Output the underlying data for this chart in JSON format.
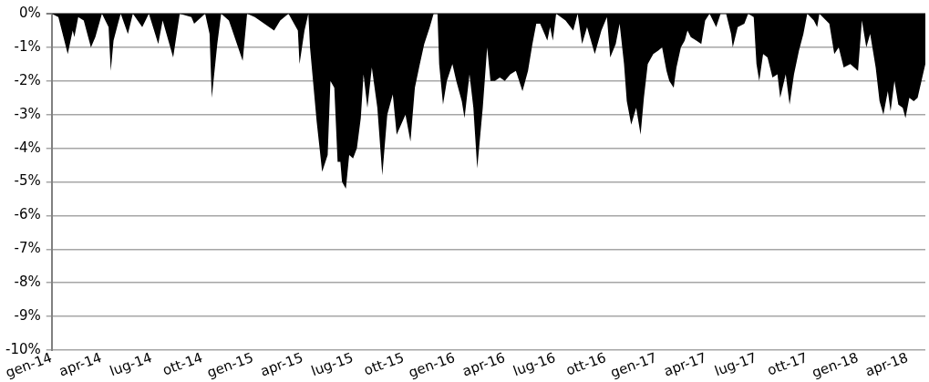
{
  "chart_data": {
    "type": "area",
    "color": "#000000",
    "grid": "y",
    "marker": "none",
    "xlim": [
      "2014-01-01",
      "2018-05-03"
    ],
    "xticks": [
      {
        "value": "2014-01",
        "label": "gen-14"
      },
      {
        "value": "2014-04",
        "label": "apr-14"
      },
      {
        "value": "2014-07",
        "label": "lug-14"
      },
      {
        "value": "2014-10",
        "label": "ott-14"
      },
      {
        "value": "2015-01",
        "label": "gen-15"
      },
      {
        "value": "2015-04",
        "label": "apr-15"
      },
      {
        "value": "2015-07",
        "label": "lug-15"
      },
      {
        "value": "2015-10",
        "label": "ott-15"
      },
      {
        "value": "2016-01",
        "label": "gen-16"
      },
      {
        "value": "2016-04",
        "label": "apr-16"
      },
      {
        "value": "2016-07",
        "label": "lug-16"
      },
      {
        "value": "2016-10",
        "label": "ott-16"
      },
      {
        "value": "2017-01",
        "label": "gen-17"
      },
      {
        "value": "2017-04",
        "label": "apr-17"
      },
      {
        "value": "2017-07",
        "label": "lug-17"
      },
      {
        "value": "2017-10",
        "label": "ott-17"
      },
      {
        "value": "2018-01",
        "label": "gen-18"
      },
      {
        "value": "2018-04",
        "label": "apr-18"
      }
    ],
    "ylim": [
      -10,
      0
    ],
    "yticks": [
      {
        "value": 0,
        "label": "0%"
      },
      {
        "value": -1,
        "label": "-1%"
      },
      {
        "value": -2,
        "label": "-2%"
      },
      {
        "value": -3,
        "label": "-3%"
      },
      {
        "value": -4,
        "label": "-4%"
      },
      {
        "value": -5,
        "label": "-5%"
      },
      {
        "value": -6,
        "label": "-6%"
      },
      {
        "value": -7,
        "label": "-7%"
      },
      {
        "value": -8,
        "label": "-8%"
      },
      {
        "value": -9,
        "label": "-9%"
      },
      {
        "value": -10,
        "label": "-10%"
      }
    ],
    "x": [
      "2014-01-01",
      "2014-01-13",
      "2014-01-30",
      "2014-02-08",
      "2014-02-11",
      "2014-02-18",
      "2014-02-28",
      "2014-03-13",
      "2014-03-21",
      "2014-04-02",
      "2014-04-14",
      "2014-04-18",
      "2014-04-23",
      "2014-05-01",
      "2014-05-06",
      "2014-05-19",
      "2014-05-28",
      "2014-06-14",
      "2014-06-26",
      "2014-07-13",
      "2014-07-21",
      "2014-08-09",
      "2014-08-21",
      "2014-09-11",
      "2014-09-16",
      "2014-10-06",
      "2014-10-14",
      "2014-10-18",
      "2014-10-28",
      "2014-11-04",
      "2014-11-18",
      "2014-12-13",
      "2014-12-21",
      "2015-01-04",
      "2015-02-08",
      "2015-02-19",
      "2015-03-06",
      "2015-03-23",
      "2015-03-26",
      "2015-04-04",
      "2015-04-11",
      "2015-04-14",
      "2015-04-26",
      "2015-05-06",
      "2015-05-16",
      "2015-05-21",
      "2015-05-28",
      "2015-06-03",
      "2015-06-08",
      "2015-06-11",
      "2015-06-18",
      "2015-06-24",
      "2015-07-01",
      "2015-07-08",
      "2015-07-15",
      "2015-07-20",
      "2015-07-27",
      "2015-08-04",
      "2015-08-14",
      "2015-08-23",
      "2015-09-01",
      "2015-09-11",
      "2015-09-18",
      "2015-09-26",
      "2015-10-04",
      "2015-10-13",
      "2015-10-21",
      "2015-10-30",
      "2015-11-07",
      "2015-11-17",
      "2015-11-24",
      "2015-12-01",
      "2015-12-04",
      "2015-12-11",
      "2015-12-18",
      "2015-12-28",
      "2016-01-04",
      "2016-01-14",
      "2016-01-19",
      "2016-01-28",
      "2016-02-04",
      "2016-02-11",
      "2016-02-21",
      "2016-02-29",
      "2016-03-06",
      "2016-03-14",
      "2016-03-23",
      "2016-04-01",
      "2016-04-11",
      "2016-04-21",
      "2016-05-03",
      "2016-05-13",
      "2016-05-21",
      "2016-05-28",
      "2016-06-04",
      "2016-06-12",
      "2016-06-17",
      "2016-06-22",
      "2016-06-27",
      "2016-07-03",
      "2016-07-20",
      "2016-08-03",
      "2016-08-11",
      "2016-08-19",
      "2016-08-28",
      "2016-09-11",
      "2016-09-23",
      "2016-10-03",
      "2016-10-09",
      "2016-10-19",
      "2016-10-26",
      "2016-11-03",
      "2016-11-08",
      "2016-11-16",
      "2016-11-25",
      "2016-12-03",
      "2016-12-09",
      "2016-12-16",
      "2016-12-26",
      "2017-01-04",
      "2017-01-11",
      "2017-01-19",
      "2017-01-24",
      "2017-02-01",
      "2017-02-06",
      "2017-02-14",
      "2017-02-21",
      "2017-02-26",
      "2017-03-04",
      "2017-03-14",
      "2017-03-23",
      "2017-03-30",
      "2017-04-07",
      "2017-04-19",
      "2017-04-27",
      "2017-05-07",
      "2017-05-16",
      "2017-05-19",
      "2017-05-28",
      "2017-06-09",
      "2017-06-16",
      "2017-06-26",
      "2017-07-01",
      "2017-07-06",
      "2017-07-13",
      "2017-07-21",
      "2017-07-30",
      "2017-08-08",
      "2017-08-13",
      "2017-08-23",
      "2017-08-30",
      "2017-09-07",
      "2017-09-16",
      "2017-09-24",
      "2017-10-01",
      "2017-10-13",
      "2017-10-19",
      "2017-10-23",
      "2017-11-10",
      "2017-11-19",
      "2017-11-27",
      "2017-12-06",
      "2017-12-18",
      "2018-01-01",
      "2018-01-08",
      "2018-01-16",
      "2018-01-23",
      "2018-02-02",
      "2018-02-09",
      "2018-02-16",
      "2018-02-24",
      "2018-03-01",
      "2018-03-08",
      "2018-03-15",
      "2018-03-23",
      "2018-03-28",
      "2018-04-04",
      "2018-04-12",
      "2018-04-19",
      "2018-04-26",
      "2018-05-03"
    ],
    "values": [
      0,
      -0.1,
      -1.2,
      -0.5,
      -0.7,
      -0.1,
      -0.2,
      -1.0,
      -0.7,
      0,
      -0.4,
      -1.7,
      -0.8,
      -0.3,
      0,
      -0.6,
      0,
      -0.4,
      0,
      -0.9,
      -0.2,
      -1.3,
      0,
      -0.1,
      -0.3,
      0,
      -0.6,
      -2.5,
      -0.9,
      0,
      -0.2,
      -1.4,
      0,
      -0.1,
      -0.5,
      -0.2,
      0,
      -0.5,
      -1.5,
      -0.5,
      0,
      -1.0,
      -3.2,
      -4.7,
      -4.2,
      -2.0,
      -2.2,
      -4.4,
      -4.4,
      -5.0,
      -5.2,
      -4.2,
      -4.3,
      -4.0,
      -3.1,
      -1.8,
      -2.8,
      -1.6,
      -2.8,
      -4.8,
      -3.0,
      -2.4,
      -3.6,
      -3.3,
      -3.0,
      -3.8,
      -2.2,
      -1.5,
      -0.9,
      -0.4,
      0,
      0,
      -1.5,
      -2.7,
      -2.0,
      -1.5,
      -2.0,
      -2.6,
      -3.1,
      -1.8,
      -2.8,
      -4.6,
      -2.8,
      -1.0,
      -2.0,
      -2.0,
      -1.9,
      -2.0,
      -1.8,
      -1.7,
      -2.3,
      -1.7,
      -0.9,
      -0.3,
      -0.3,
      -0.6,
      -0.8,
      -0.4,
      -0.8,
      0,
      -0.2,
      -0.5,
      0,
      -0.9,
      -0.4,
      -1.2,
      -0.5,
      -0.1,
      -1.3,
      -0.9,
      -0.3,
      -1.5,
      -2.6,
      -3.3,
      -2.8,
      -3.6,
      -2.5,
      -1.5,
      -1.2,
      -1.1,
      -1.0,
      -1.7,
      -2.0,
      -2.2,
      -1.6,
      -1.0,
      -0.8,
      -0.5,
      -0.7,
      -0.8,
      -0.9,
      -0.2,
      0,
      -0.4,
      0,
      0,
      -0.6,
      -1.0,
      -0.4,
      -0.3,
      0,
      -0.1,
      -1.5,
      -2.0,
      -1.2,
      -1.3,
      -1.9,
      -1.8,
      -2.5,
      -1.8,
      -2.7,
      -1.8,
      -1.1,
      -0.6,
      0,
      -0.2,
      -0.4,
      0,
      -0.3,
      -1.2,
      -1.0,
      -1.6,
      -1.5,
      -1.7,
      -0.2,
      -1.0,
      -0.6,
      -1.6,
      -2.6,
      -3.0,
      -2.3,
      -2.9,
      -2.0,
      -2.7,
      -2.8,
      -3.1,
      -2.5,
      -2.6,
      -2.5,
      -2.0,
      -1.5
    ]
  }
}
